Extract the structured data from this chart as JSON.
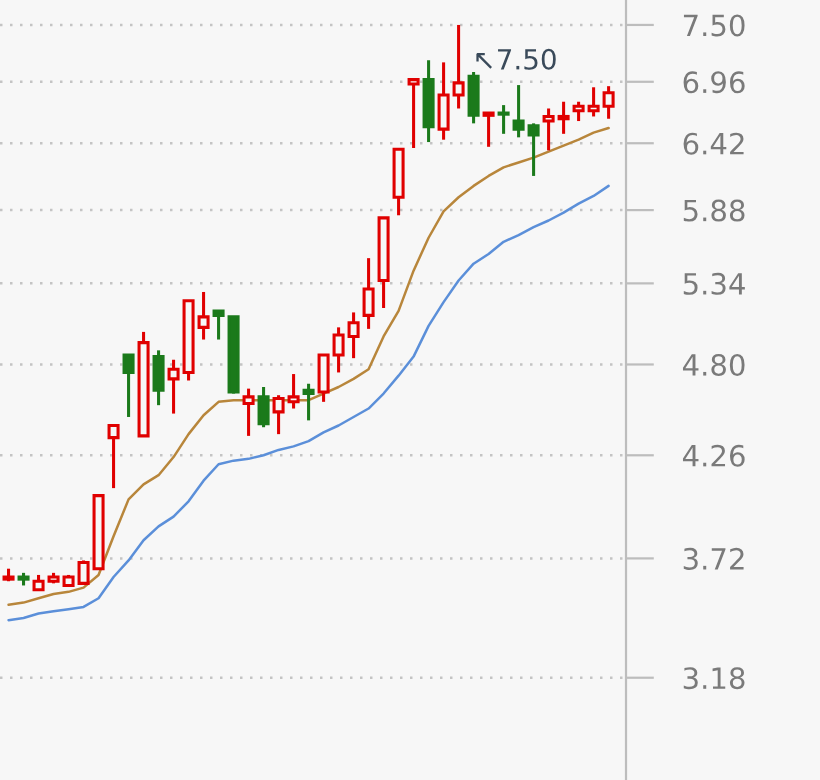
{
  "chart_data": {
    "type": "candlestick",
    "categories": [
      null,
      null,
      null,
      null,
      null,
      null,
      null,
      null,
      null,
      null,
      null,
      null,
      null,
      null,
      null,
      null,
      null,
      null,
      null,
      null,
      null,
      null,
      null,
      null,
      null,
      null,
      null,
      null,
      null,
      null,
      null,
      null,
      null,
      null,
      null,
      null,
      null,
      null,
      null,
      null,
      null
    ],
    "ohlc": [
      [
        3.62,
        3.67,
        3.61,
        3.63
      ],
      [
        3.63,
        3.65,
        3.59,
        3.62
      ],
      [
        3.57,
        3.64,
        3.57,
        3.61
      ],
      [
        3.61,
        3.65,
        3.6,
        3.63
      ],
      [
        3.59,
        3.64,
        3.59,
        3.63
      ],
      [
        3.6,
        3.71,
        3.6,
        3.7
      ],
      [
        3.67,
        4.04,
        3.67,
        4.04
      ],
      [
        4.36,
        4.43,
        4.08,
        4.43
      ],
      [
        4.86,
        4.86,
        4.48,
        4.75
      ],
      [
        4.37,
        5.01,
        4.37,
        4.94
      ],
      [
        4.85,
        4.89,
        4.55,
        4.64
      ],
      [
        4.71,
        4.83,
        4.5,
        4.77
      ],
      [
        4.75,
        5.22,
        4.7,
        5.22
      ],
      [
        5.04,
        5.28,
        4.96,
        5.11
      ],
      [
        5.15,
        5.15,
        4.96,
        5.12
      ],
      [
        5.11,
        5.11,
        4.62,
        4.63
      ],
      [
        4.56,
        4.65,
        4.37,
        4.6
      ],
      [
        4.6,
        4.66,
        4.42,
        4.44
      ],
      [
        4.51,
        4.61,
        4.38,
        4.59
      ],
      [
        4.57,
        4.74,
        4.53,
        4.6
      ],
      [
        4.64,
        4.68,
        4.46,
        4.62
      ],
      [
        4.63,
        4.86,
        4.57,
        4.86
      ],
      [
        4.86,
        5.04,
        4.75,
        4.99
      ],
      [
        4.98,
        5.14,
        4.84,
        5.07
      ],
      [
        5.12,
        5.52,
        5.03,
        5.3
      ],
      [
        5.36,
        5.82,
        5.17,
        5.82
      ],
      [
        5.98,
        6.37,
        5.84,
        6.37
      ],
      [
        6.94,
        6.98,
        6.38,
        6.98
      ],
      [
        6.98,
        7.16,
        6.43,
        6.56
      ],
      [
        6.54,
        7.14,
        6.45,
        6.84
      ],
      [
        6.84,
        7.5,
        6.72,
        6.95
      ],
      [
        7.01,
        7.05,
        6.59,
        6.66
      ],
      [
        6.66,
        6.68,
        6.39,
        6.68
      ],
      [
        6.68,
        6.75,
        6.5,
        6.67
      ],
      [
        6.61,
        6.93,
        6.47,
        6.54
      ],
      [
        6.57,
        6.59,
        6.15,
        6.49
      ],
      [
        6.61,
        6.72,
        6.36,
        6.65
      ],
      [
        6.63,
        6.78,
        6.5,
        6.65
      ],
      [
        6.7,
        6.78,
        6.61,
        6.74
      ],
      [
        6.7,
        6.91,
        6.65,
        6.74
      ],
      [
        6.74,
        6.92,
        6.63,
        6.86
      ]
    ],
    "colors": [
      "#e00000",
      "#1b7a1b",
      "#e00000",
      "#e00000",
      "#e00000",
      "#e00000",
      "#e00000",
      "#e00000",
      "#1b7a1b",
      "#e00000",
      "#1b7a1b",
      "#e00000",
      "#e00000",
      "#e00000",
      "#1b7a1b",
      "#1b7a1b",
      "#e00000",
      "#1b7a1b",
      "#e00000",
      "#e00000",
      "#1b7a1b",
      "#e00000",
      "#e00000",
      "#e00000",
      "#e00000",
      "#e00000",
      "#e00000",
      "#e00000",
      "#1b7a1b",
      "#e00000",
      "#e00000",
      "#1b7a1b",
      "#e00000",
      "#1b7a1b",
      "#1b7a1b",
      "#1b7a1b",
      "#e00000",
      "#e00000",
      "#e00000",
      "#e00000",
      "#e00000"
    ],
    "series": [
      {
        "type": "line",
        "color": "#b8863b",
        "values": [
          3.5,
          3.51,
          3.53,
          3.55,
          3.56,
          3.58,
          3.64,
          3.83,
          4.02,
          4.1,
          4.15,
          4.25,
          4.38,
          4.49,
          4.57,
          4.58,
          4.58,
          4.58,
          4.58,
          4.58,
          4.58,
          4.62,
          4.66,
          4.71,
          4.77,
          4.98,
          5.15,
          5.43,
          5.67,
          5.87,
          5.98,
          6.07,
          6.15,
          6.22,
          6.26,
          6.3,
          6.35,
          6.4,
          6.45,
          6.51,
          6.55
        ]
      },
      {
        "type": "line",
        "color": "#5b8fd9",
        "values": [
          3.43,
          3.44,
          3.46,
          3.47,
          3.48,
          3.49,
          3.53,
          3.63,
          3.71,
          3.81,
          3.88,
          3.93,
          4.01,
          4.12,
          4.21,
          4.23,
          4.24,
          4.26,
          4.29,
          4.31,
          4.34,
          4.39,
          4.43,
          4.48,
          4.53,
          4.62,
          4.73,
          4.85,
          5.05,
          5.21,
          5.36,
          5.48,
          5.55,
          5.64,
          5.69,
          5.75,
          5.8,
          5.86,
          5.93,
          5.99,
          6.07
        ]
      }
    ],
    "annotations": [
      "↖7.50"
    ],
    "log": "y",
    "ylim": [
      2.78,
      7.75
    ],
    "yticks": [
      3.18,
      3.72,
      4.26,
      {
        "value": 4.8,
        "label": "4.80"
      },
      5.34,
      5.88,
      6.42,
      6.96,
      {
        "value": 7.5,
        "label": "7.50"
      }
    ],
    "grid": "y",
    "tick_labels": "y"
  }
}
